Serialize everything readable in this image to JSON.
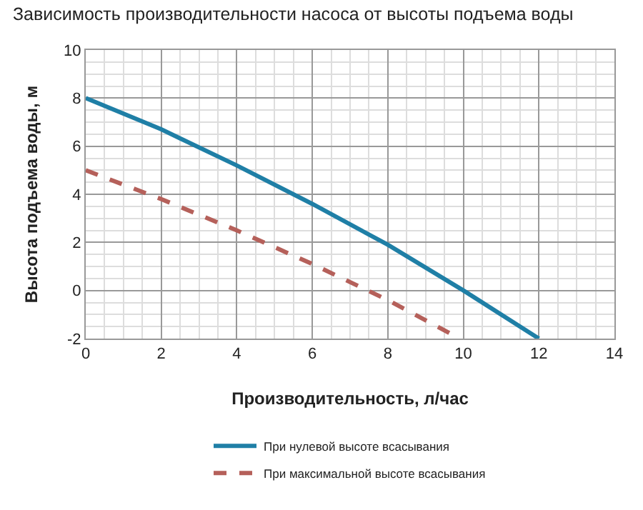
{
  "chart_data": {
    "type": "line",
    "title": "Зависимость производительности насоса от высоты подъема воды",
    "xlabel": "Производительность, л/час",
    "ylabel": "Высота подъема воды, м",
    "series": [
      {
        "name": "При нулевой высоте всасывания",
        "color": "#1f7fa6",
        "line_style": "solid",
        "x": [
          0,
          2,
          4,
          6,
          8,
          10,
          12
        ],
        "values": [
          8,
          6.7,
          5.2,
          3.6,
          1.9,
          0,
          -2
        ]
      },
      {
        "name": "При максимальной высоте всасывания",
        "color": "#b5605a",
        "line_style": "dashed",
        "x": [
          0,
          2,
          4,
          6,
          8,
          9.9
        ],
        "values": [
          5,
          3.8,
          2.5,
          1.1,
          -0.4,
          -2
        ]
      }
    ],
    "xlim": [
      0,
      14
    ],
    "xticks": [
      0,
      2,
      4,
      6,
      8,
      10,
      12,
      14
    ],
    "ylim": [
      -2,
      10
    ],
    "yticks": [
      -2,
      0,
      2,
      4,
      6,
      8,
      10
    ],
    "grid": true,
    "legend": "bottom",
    "marker": "none"
  }
}
